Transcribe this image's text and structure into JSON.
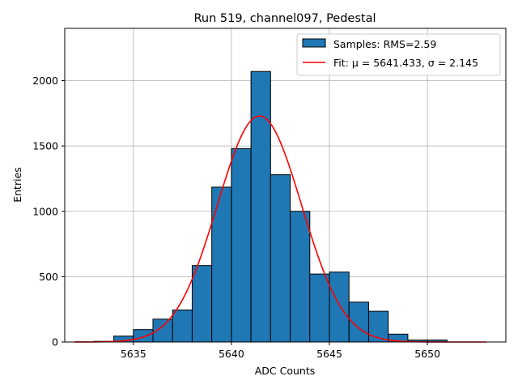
{
  "chart_data": {
    "type": "bar",
    "title": "Run 519, channel097, Pedestal",
    "xlabel": "ADC Counts",
    "ylabel": "Entries",
    "xlim": [
      5631.5,
      5654.0
    ],
    "ylim": [
      0,
      2400
    ],
    "grid": true,
    "xticks": [
      5635,
      5640,
      5645,
      5650
    ],
    "yticks": [
      0,
      500,
      1000,
      1500,
      2000
    ],
    "bins": {
      "edges": [
        5633,
        5634,
        5635,
        5636,
        5637,
        5638,
        5639,
        5640,
        5641,
        5642,
        5643,
        5644,
        5645,
        5646,
        5647,
        5648,
        5649,
        5650,
        5651
      ],
      "values": [
        5,
        45,
        95,
        175,
        245,
        585,
        1185,
        1480,
        2070,
        1280,
        1000,
        520,
        535,
        305,
        235,
        60,
        15,
        15
      ],
      "color": "#1f77b4",
      "edgecolor": "#000000"
    },
    "fit": {
      "type": "gaussian",
      "mu": 5641.433,
      "sigma": 2.145,
      "amplitude": 1730,
      "x_range": [
        5632,
        5653
      ],
      "color": "#ff0000"
    },
    "legend": {
      "position": "top-right",
      "entries": [
        {
          "label": "Samples: RMS=2.59",
          "kind": "patch",
          "color": "#1f77b4"
        },
        {
          "label": "Fit: μ = 5641.433, σ = 2.145",
          "kind": "line",
          "color": "#ff0000"
        }
      ]
    }
  }
}
